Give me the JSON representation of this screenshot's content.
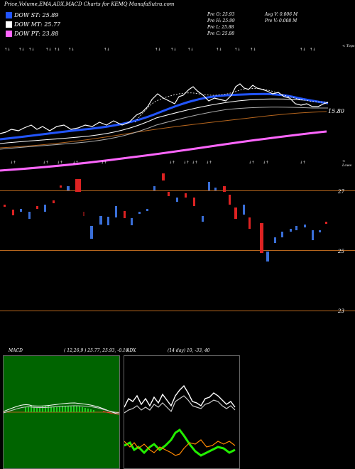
{
  "header": {
    "title": "Price,Volume,EMA,ADX,MACD Charts for KEMQ MunafaSutra.com"
  },
  "legend": [
    {
      "label": "DOW ST: 25.89",
      "color": "#2255ff"
    },
    {
      "label": "DOW MT: 25.77",
      "color": "#ffffff"
    },
    {
      "label": "DOW PT: 23.88",
      "color": "#ff66ff"
    }
  ],
  "stats": {
    "pre_o": "Pre   O: 25.93",
    "pre_h": "Pre   H: 25.99",
    "pre_l": "Pre   L: 25.88",
    "pre_c": "Pre   C: 25.88",
    "avg_v": "Avg V: 0.006   M",
    "pre_v": "Pre   V: 0.008 M"
  },
  "corner_labels": {
    "top": "< Tops",
    "low": "< Lows"
  },
  "price_labels": {
    "p1": "15.80",
    "l27": "27",
    "l25": "25",
    "l23": "23"
  },
  "macd": {
    "label": "MACD",
    "params": "( 12,26,9 ) 25.77,  25.93,  -0.16"
  },
  "adx": {
    "label": "ADX",
    "params": "(14  day) 10,  -33,  40"
  },
  "colors": {
    "ema_fast": "#2255ff",
    "ema_mid": "#ffffff",
    "ema_pt": "#ff66ff",
    "brown": "#b5651d",
    "up": "#3a6fd8",
    "down": "#dd2222",
    "macd_fill": "#22cc22",
    "adx_plus": "#22ee00",
    "adx_minus": "#ff8800"
  }
}
